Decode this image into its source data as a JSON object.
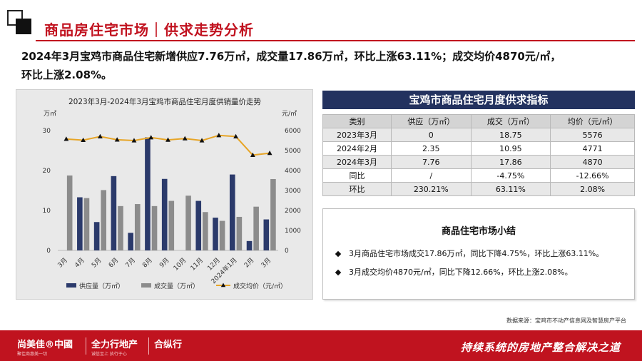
{
  "header": {
    "title": "商品房住宅市场｜供求走势分析"
  },
  "headline": {
    "line1": "2024年3月宝鸡市商品住宅新增供应7.76万㎡，成交量17.86万㎡，环比上涨63.11%；成交均价4870元/㎡，",
    "line2": "环比上涨2.08%。"
  },
  "chart_data": {
    "type": "bar",
    "title": "2023年3月-2024年3月宝鸡市商品住宅月度供销量价走势",
    "y_left_unit": "万㎡",
    "y_right_unit": "元/㎡",
    "y_left_ticks": [
      "0",
      "10",
      "20",
      "30"
    ],
    "y_right_ticks": [
      "0",
      "1000",
      "2000",
      "3000",
      "4000",
      "5000",
      "6000"
    ],
    "ylim_left": [
      0,
      30
    ],
    "ylim_right": [
      0,
      6000
    ],
    "categories": [
      "3月",
      "4月",
      "5月",
      "6月",
      "7月",
      "8月",
      "9月",
      "10月",
      "11月",
      "12月",
      "2024年1月",
      "2月",
      "3月"
    ],
    "series": [
      {
        "name": "供应量（万㎡）",
        "type": "bar",
        "axis": "left",
        "color": "#2b3a6b",
        "values": [
          0,
          13.3,
          7.1,
          18.6,
          4.4,
          28.3,
          17.9,
          0,
          12.4,
          8.2,
          19,
          2.35,
          7.76
        ]
      },
      {
        "name": "成交量（万㎡）",
        "type": "bar",
        "axis": "left",
        "color": "#8c8c8c",
        "values": [
          18.75,
          13.1,
          15.1,
          11.1,
          11.6,
          11.1,
          12.4,
          13.7,
          9.6,
          7.4,
          8.4,
          10.95,
          17.86
        ]
      },
      {
        "name": "成交均价（元/㎡）",
        "type": "line",
        "axis": "right",
        "color": "#e7a527",
        "values": [
          5576,
          5520,
          5700,
          5540,
          5500,
          5650,
          5530,
          5600,
          5500,
          5760,
          5700,
          4771,
          4870
        ]
      }
    ],
    "legend_position": "bottom",
    "grid": false
  },
  "table": {
    "title": "宝鸡市商品住宅月度供求指标",
    "headers": [
      "类别",
      "供应（万㎡）",
      "成交（万㎡）",
      "均价（元/㎡）"
    ],
    "rows": [
      [
        "2023年3月",
        "0",
        "18.75",
        "5576"
      ],
      [
        "2024年2月",
        "2.35",
        "10.95",
        "4771"
      ],
      [
        "2024年3月",
        "7.76",
        "17.86",
        "4870"
      ],
      [
        "同比",
        "/",
        "-4.75%",
        "-12.66%"
      ],
      [
        "环比",
        "230.21%",
        "63.11%",
        "2.08%"
      ]
    ]
  },
  "summary": {
    "title": "商品住宅市场小结",
    "bullets": [
      "3月商品住宅市场成交17.86万㎡，同比下降4.75%，环比上涨63.11%。",
      "3月成交均价4870元/㎡，同比下降12.66%，环比上涨2.08%。"
    ]
  },
  "source": "数据来源：宝鸡市不动产信息网及智慧房产平台",
  "footer": {
    "logo1": "尚美佳®中國",
    "logo1_sub": "聚佳商惠美一切",
    "logo2": "全力行地产",
    "logo2_sub": "诚信至上 执行于心",
    "logo3": "合纵行",
    "slogan": "持续系统的房地产整合解决之道"
  },
  "colors": {
    "brand_red": "#c1121f",
    "navy": "#23325f",
    "supply_bar": "#2b3a6b",
    "deal_bar": "#8c8c8c",
    "price_line": "#e7a527"
  }
}
